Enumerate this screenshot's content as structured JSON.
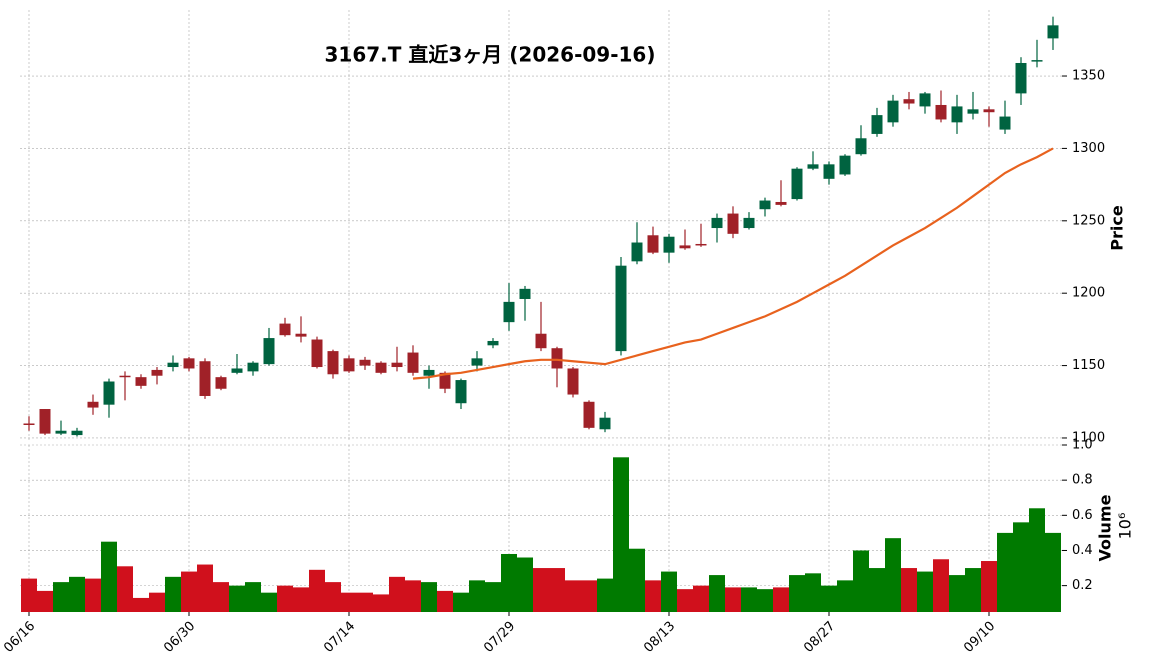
{
  "chart_data": [
    {
      "type": "candlestick",
      "title": "3167.T  直近3ヶ月  (2026-09-16)",
      "y_label": "Price",
      "ylim": [
        1098.6,
        1395.6
      ],
      "yticks": [
        1100,
        1150,
        1200,
        1250,
        1300,
        1350
      ],
      "grid": true,
      "up_color": "#006340",
      "down_color": "#a02128",
      "ma_color": "#e8621e",
      "open": [
        1110,
        1120,
        1103,
        1102,
        1125,
        1123,
        1143,
        1142,
        1147,
        1149,
        1155,
        1153,
        1142,
        1145,
        1146,
        1151,
        1179,
        1172,
        1168,
        1160,
        1155,
        1154,
        1152,
        1152,
        1159,
        1143,
        1145,
        1124,
        1150,
        1164,
        1180,
        1196,
        1172,
        1162,
        1148,
        1125,
        1106,
        1160,
        1222,
        1240,
        1228,
        1233,
        1234,
        1245,
        1255,
        1245,
        1258,
        1263,
        1265,
        1286,
        1279,
        1282,
        1296,
        1310,
        1318,
        1334,
        1329,
        1330,
        1318,
        1324,
        1327,
        1313,
        1338,
        1360,
        1376
      ],
      "high": [
        1115,
        1120,
        1112,
        1107,
        1130,
        1141,
        1146,
        1144,
        1149,
        1157,
        1156,
        1155,
        1143,
        1158,
        1153,
        1176,
        1183,
        1184,
        1170,
        1161,
        1157,
        1156,
        1153,
        1163,
        1164,
        1150,
        1146,
        1141,
        1160,
        1169,
        1207,
        1205,
        1194,
        1163,
        1149,
        1126,
        1118,
        1225,
        1249,
        1246,
        1241,
        1244,
        1248,
        1255,
        1260,
        1256,
        1266,
        1278,
        1287,
        1298,
        1291,
        1296,
        1316,
        1328,
        1337,
        1339,
        1339,
        1340,
        1337,
        1339,
        1329,
        1333,
        1363,
        1375,
        1391
      ],
      "low": [
        1105,
        1102,
        1102,
        1101,
        1116,
        1114,
        1126,
        1134,
        1137,
        1146,
        1146,
        1127,
        1133,
        1144,
        1143,
        1150,
        1170,
        1166,
        1148,
        1141,
        1145,
        1147,
        1144,
        1146,
        1143,
        1134,
        1131,
        1120,
        1146,
        1162,
        1174,
        1181,
        1160,
        1135,
        1128,
        1106,
        1104,
        1157,
        1220,
        1227,
        1221,
        1230,
        1232,
        1235,
        1238,
        1244,
        1253,
        1260,
        1264,
        1285,
        1275,
        1281,
        1295,
        1308,
        1315,
        1327,
        1324,
        1318,
        1310,
        1320,
        1315,
        1310,
        1330,
        1356,
        1368
      ],
      "close": [
        1109,
        1103,
        1105,
        1105,
        1121,
        1139,
        1142,
        1136,
        1143,
        1152,
        1148,
        1129,
        1134,
        1148,
        1152,
        1169,
        1171,
        1170,
        1149,
        1144,
        1146,
        1150,
        1145,
        1149,
        1145,
        1147,
        1134,
        1140,
        1155,
        1167,
        1194,
        1203,
        1162,
        1148,
        1130,
        1107,
        1114,
        1219,
        1235,
        1228,
        1239,
        1231,
        1233,
        1252,
        1241,
        1252,
        1264,
        1261,
        1286,
        1289,
        1289,
        1295,
        1307,
        1323,
        1333,
        1331,
        1338,
        1320,
        1329,
        1327,
        1325,
        1322,
        1359,
        1361,
        1385
      ],
      "ma_values": [
        null,
        null,
        null,
        null,
        null,
        null,
        null,
        null,
        null,
        null,
        null,
        null,
        null,
        null,
        null,
        null,
        null,
        null,
        null,
        null,
        null,
        null,
        null,
        null,
        1141,
        1142,
        1144,
        1145,
        1147,
        1149,
        1151,
        1153,
        1154,
        1154,
        1153,
        1152,
        1151,
        1154,
        1157,
        1160,
        1163,
        1166,
        1168,
        1172,
        1176,
        1180,
        1184,
        1189,
        1194,
        1200,
        1206,
        1212,
        1219,
        1226,
        1233,
        1239,
        1245,
        1252,
        1259,
        1267,
        1275,
        1283,
        1289,
        1294,
        1300
      ]
    },
    {
      "type": "bar",
      "y_label": "Volume",
      "scale_label": "10⁶",
      "ylim": [
        0.05,
        1.0
      ],
      "yticks": [
        0.2,
        0.4,
        0.6,
        0.8,
        {
          "value": 1,
          "label": "1.0"
        }
      ],
      "grid": true,
      "up_color": "#007a00",
      "down_color": "#d0101c",
      "categories": [
        "06/16",
        null,
        null,
        null,
        null,
        null,
        null,
        null,
        null,
        null,
        "06/30",
        null,
        null,
        null,
        null,
        null,
        null,
        null,
        null,
        null,
        "07/14",
        null,
        null,
        null,
        null,
        null,
        null,
        null,
        null,
        null,
        "07/29",
        null,
        null,
        null,
        null,
        null,
        null,
        null,
        null,
        null,
        "08/13",
        null,
        null,
        null,
        null,
        null,
        null,
        null,
        null,
        null,
        "08/27",
        null,
        null,
        null,
        null,
        null,
        null,
        null,
        null,
        null,
        "09/10",
        null,
        null,
        null,
        null
      ],
      "values": [
        0.24,
        0.17,
        0.22,
        0.25,
        0.24,
        0.45,
        0.31,
        0.13,
        0.16,
        0.25,
        0.28,
        0.32,
        0.22,
        0.2,
        0.22,
        0.16,
        0.2,
        0.19,
        0.29,
        0.22,
        0.16,
        0.16,
        0.15,
        0.25,
        0.23,
        0.22,
        0.17,
        0.16,
        0.23,
        0.22,
        0.38,
        0.36,
        0.3,
        0.3,
        0.23,
        0.23,
        0.24,
        0.93,
        0.41,
        0.23,
        0.28,
        0.18,
        0.2,
        0.26,
        0.19,
        0.19,
        0.18,
        0.19,
        0.26,
        0.27,
        0.2,
        0.23,
        0.4,
        0.3,
        0.47,
        0.3,
        0.28,
        0.35,
        0.26,
        0.3,
        0.34,
        0.5,
        0.56,
        0.64,
        0.5
      ]
    }
  ]
}
